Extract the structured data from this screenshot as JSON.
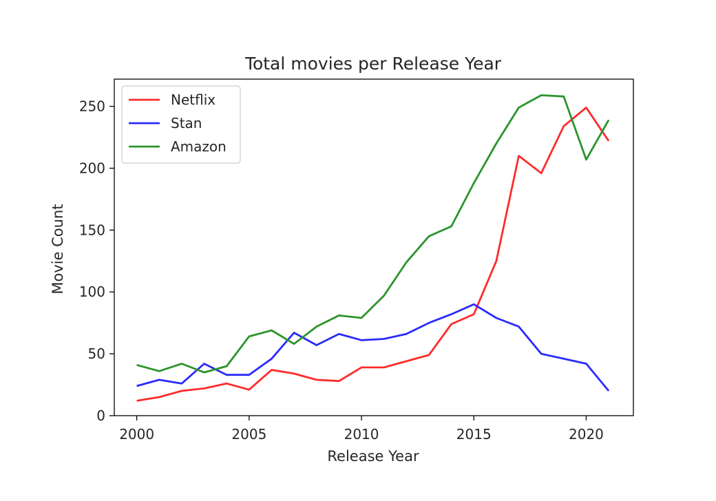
{
  "chart_data": {
    "type": "line",
    "title": "Total movies per Release Year",
    "xlabel": "Release Year",
    "ylabel": "Movie Count",
    "xlim": [
      1999.0,
      2022.1
    ],
    "ylim": [
      0,
      272
    ],
    "xticks": [
      2000,
      2005,
      2010,
      2015,
      2020
    ],
    "yticks": [
      0,
      50,
      100,
      150,
      200,
      250
    ],
    "grid": false,
    "legend_position": "top-left",
    "x": [
      2000,
      2001,
      2002,
      2003,
      2004,
      2005,
      2006,
      2007,
      2008,
      2009,
      2010,
      2011,
      2012,
      2013,
      2014,
      2015,
      2016,
      2017,
      2018,
      2019,
      2020,
      2021
    ],
    "series": [
      {
        "name": "Netflix",
        "color": "#ff2a2a",
        "values": [
          12,
          15,
          20,
          22,
          26,
          21,
          37,
          34,
          29,
          28,
          39,
          39,
          44,
          49,
          74,
          82,
          125,
          210,
          196,
          234,
          249,
          222
        ]
      },
      {
        "name": "Stan",
        "color": "#2a2aff",
        "values": [
          24,
          29,
          26,
          42,
          33,
          33,
          46,
          67,
          57,
          66,
          61,
          62,
          66,
          75,
          82,
          90,
          79,
          72,
          50,
          46,
          42,
          20
        ]
      },
      {
        "name": "Amazon",
        "color": "#2a942a",
        "values": [
          41,
          36,
          42,
          35,
          40,
          64,
          69,
          58,
          72,
          81,
          79,
          97,
          124,
          145,
          153,
          188,
          220,
          249,
          259,
          258,
          207,
          239
        ]
      }
    ]
  }
}
